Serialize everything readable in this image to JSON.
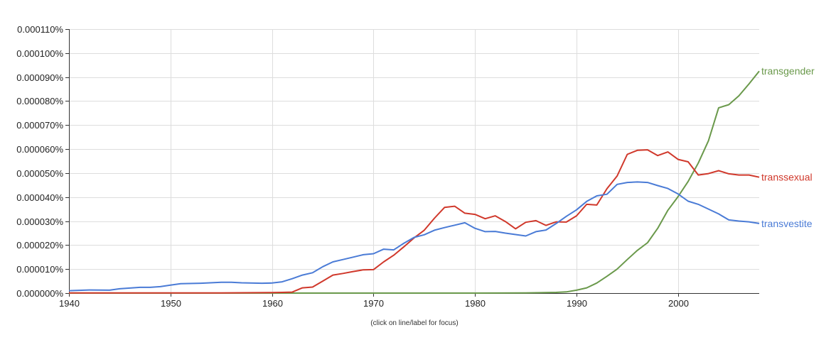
{
  "hint": "(click on line/label for focus)",
  "chart_data": {
    "type": "line",
    "title": "",
    "xlabel": "",
    "ylabel": "",
    "xlim": [
      1940,
      2008
    ],
    "ylim": [
      0,
      0.00011
    ],
    "grid": true,
    "legend": "end-of-line labels",
    "x_ticks": [
      1940,
      1950,
      1960,
      1970,
      1980,
      1990,
      2000
    ],
    "x_tick_labels": [
      "1940",
      "1950",
      "1960",
      "1970",
      "1980",
      "1990",
      "2000"
    ],
    "y_ticks": [
      0,
      1e-05,
      2e-05,
      3e-05,
      4e-05,
      5e-05,
      6e-05,
      7e-05,
      8e-05,
      9e-05,
      0.0001,
      0.00011
    ],
    "y_tick_labels": [
      "0.000000%",
      "0.000010%",
      "0.000020%",
      "0.000030%",
      "0.000040%",
      "0.000050%",
      "0.000060%",
      "0.000070%",
      "0.000080%",
      "0.000090%",
      "0.000100%",
      "0.000110%"
    ],
    "series": [
      {
        "name": "transgender",
        "color": "#6a994b",
        "points": [
          [
            1940,
            0
          ],
          [
            1950,
            0
          ],
          [
            1960,
            0
          ],
          [
            1970,
            0
          ],
          [
            1980,
            0
          ],
          [
            1985,
            1e-07
          ],
          [
            1988,
            3e-07
          ],
          [
            1989,
            5e-07
          ],
          [
            1990,
            1.2e-06
          ],
          [
            1991,
            2.2e-06
          ],
          [
            1992,
            4.2e-06
          ],
          [
            1993,
            7e-06
          ],
          [
            1994,
            1e-05
          ],
          [
            1995,
            1.4e-05
          ],
          [
            1996,
            1.78e-05
          ],
          [
            1997,
            2.1e-05
          ],
          [
            1998,
            2.7e-05
          ],
          [
            1999,
            3.45e-05
          ],
          [
            2000,
            4.02e-05
          ],
          [
            2001,
            4.65e-05
          ],
          [
            2002,
            5.42e-05
          ],
          [
            2003,
            6.35e-05
          ],
          [
            2004,
            7.72e-05
          ],
          [
            2005,
            7.85e-05
          ],
          [
            2006,
            8.22e-05
          ],
          [
            2007,
            8.72e-05
          ],
          [
            2008,
            9.25e-05
          ]
        ]
      },
      {
        "name": "transsexual",
        "color": "#d0382b",
        "points": [
          [
            1940,
            1e-07
          ],
          [
            1950,
            1e-07
          ],
          [
            1955,
            1e-07
          ],
          [
            1960,
            2e-07
          ],
          [
            1961,
            3e-07
          ],
          [
            1962,
            4e-07
          ],
          [
            1963,
            2.2e-06
          ],
          [
            1964,
            2.5e-06
          ],
          [
            1965,
            5e-06
          ],
          [
            1966,
            7.5e-06
          ],
          [
            1967,
            8.2e-06
          ],
          [
            1968,
            9e-06
          ],
          [
            1969,
            9.7e-06
          ],
          [
            1970,
            9.8e-06
          ],
          [
            1971,
            1.3e-05
          ],
          [
            1972,
            1.58e-05
          ],
          [
            1973,
            1.93e-05
          ],
          [
            1974,
            2.3e-05
          ],
          [
            1975,
            2.62e-05
          ],
          [
            1976,
            3.12e-05
          ],
          [
            1977,
            3.57e-05
          ],
          [
            1978,
            3.62e-05
          ],
          [
            1979,
            3.33e-05
          ],
          [
            1980,
            3.28e-05
          ],
          [
            1981,
            3.1e-05
          ],
          [
            1982,
            3.22e-05
          ],
          [
            1983,
            2.98e-05
          ],
          [
            1984,
            2.68e-05
          ],
          [
            1985,
            2.95e-05
          ],
          [
            1986,
            3.02e-05
          ],
          [
            1987,
            2.82e-05
          ],
          [
            1988,
            2.97e-05
          ],
          [
            1989,
            2.96e-05
          ],
          [
            1990,
            3.22e-05
          ],
          [
            1991,
            3.7e-05
          ],
          [
            1992,
            3.67e-05
          ],
          [
            1993,
            4.35e-05
          ],
          [
            1994,
            4.88e-05
          ],
          [
            1995,
            5.78e-05
          ],
          [
            1996,
            5.95e-05
          ],
          [
            1997,
            5.97e-05
          ],
          [
            1998,
            5.73e-05
          ],
          [
            1999,
            5.88e-05
          ],
          [
            2000,
            5.57e-05
          ],
          [
            2001,
            5.47e-05
          ],
          [
            2002,
            4.92e-05
          ],
          [
            2003,
            4.98e-05
          ],
          [
            2004,
            5.1e-05
          ],
          [
            2005,
            4.97e-05
          ],
          [
            2006,
            4.92e-05
          ],
          [
            2007,
            4.92e-05
          ],
          [
            2008,
            4.83e-05
          ]
        ]
      },
      {
        "name": "transvestite",
        "color": "#4a7bd6",
        "points": [
          [
            1940,
            1e-06
          ],
          [
            1942,
            1.3e-06
          ],
          [
            1944,
            1.2e-06
          ],
          [
            1945,
            1.8e-06
          ],
          [
            1947,
            2.4e-06
          ],
          [
            1948,
            2.4e-06
          ],
          [
            1949,
            2.7e-06
          ],
          [
            1950,
            3.3e-06
          ],
          [
            1951,
            3.9e-06
          ],
          [
            1953,
            4.1e-06
          ],
          [
            1955,
            4.5e-06
          ],
          [
            1956,
            4.5e-06
          ],
          [
            1957,
            4.3e-06
          ],
          [
            1959,
            4.1e-06
          ],
          [
            1960,
            4.2e-06
          ],
          [
            1961,
            4.7e-06
          ],
          [
            1962,
            6e-06
          ],
          [
            1963,
            7.5e-06
          ],
          [
            1964,
            8.5e-06
          ],
          [
            1965,
            1.1e-05
          ],
          [
            1966,
            1.3e-05
          ],
          [
            1967,
            1.4e-05
          ],
          [
            1968,
            1.5e-05
          ],
          [
            1969,
            1.6e-05
          ],
          [
            1970,
            1.64e-05
          ],
          [
            1971,
            1.83e-05
          ],
          [
            1972,
            1.8e-05
          ],
          [
            1973,
            2.08e-05
          ],
          [
            1974,
            2.32e-05
          ],
          [
            1975,
            2.43e-05
          ],
          [
            1976,
            2.62e-05
          ],
          [
            1977,
            2.73e-05
          ],
          [
            1978,
            2.83e-05
          ],
          [
            1979,
            2.93e-05
          ],
          [
            1980,
            2.7e-05
          ],
          [
            1981,
            2.56e-05
          ],
          [
            1982,
            2.57e-05
          ],
          [
            1983,
            2.5e-05
          ],
          [
            1984,
            2.44e-05
          ],
          [
            1985,
            2.38e-05
          ],
          [
            1986,
            2.56e-05
          ],
          [
            1987,
            2.63e-05
          ],
          [
            1988,
            2.9e-05
          ],
          [
            1989,
            3.2e-05
          ],
          [
            1990,
            3.47e-05
          ],
          [
            1991,
            3.82e-05
          ],
          [
            1992,
            4.05e-05
          ],
          [
            1993,
            4.12e-05
          ],
          [
            1994,
            4.53e-05
          ],
          [
            1995,
            4.61e-05
          ],
          [
            1996,
            4.63e-05
          ],
          [
            1997,
            4.61e-05
          ],
          [
            1998,
            4.48e-05
          ],
          [
            1999,
            4.36e-05
          ],
          [
            2000,
            4.13e-05
          ],
          [
            2001,
            3.83e-05
          ],
          [
            2002,
            3.7e-05
          ],
          [
            2003,
            3.5e-05
          ],
          [
            2004,
            3.3e-05
          ],
          [
            2005,
            3.05e-05
          ],
          [
            2006,
            3e-05
          ],
          [
            2007,
            2.97e-05
          ],
          [
            2008,
            2.9e-05
          ]
        ]
      }
    ]
  }
}
